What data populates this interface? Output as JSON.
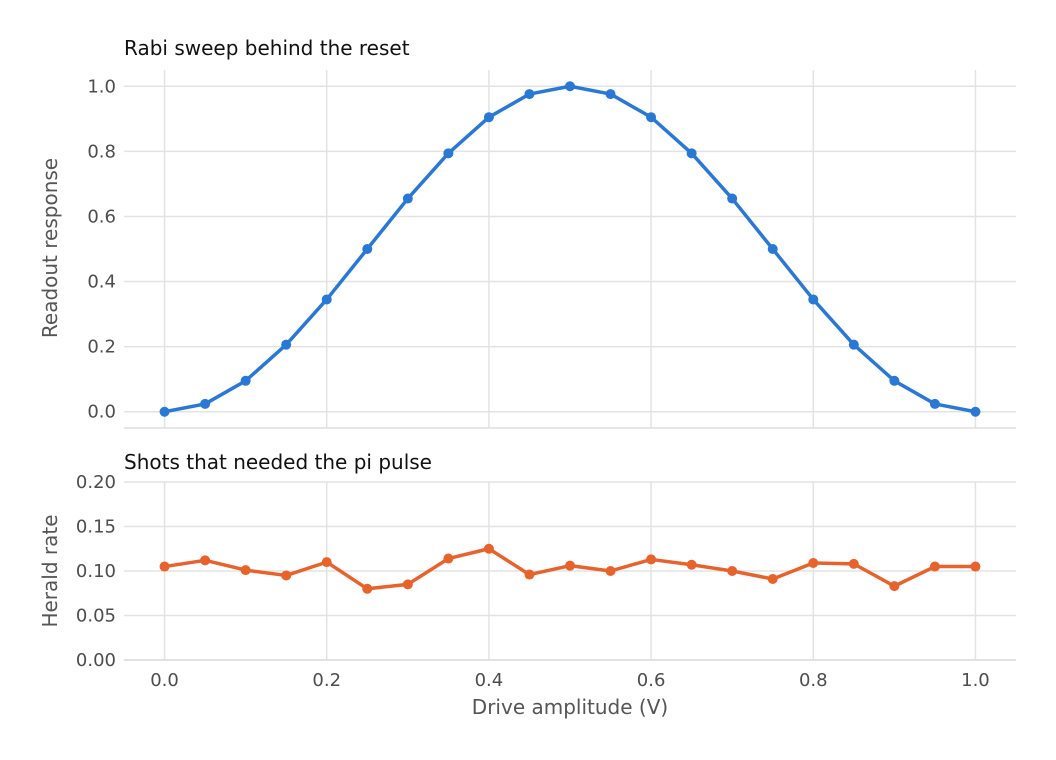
{
  "chart_data": [
    {
      "type": "line",
      "title": "Rabi sweep behind the reset",
      "xlabel": "",
      "ylabel": "Readout response",
      "xlim": [
        -0.05,
        1.05
      ],
      "ylim": [
        -0.05,
        1.05
      ],
      "xticks": [
        0.0,
        0.2,
        0.4,
        0.6,
        0.8,
        1.0
      ],
      "yticks": [
        0.0,
        0.2,
        0.4,
        0.6,
        0.8,
        1.0
      ],
      "ytick_labels": [
        "0.0",
        "0.2",
        "0.4",
        "0.6",
        "0.8",
        "1.0"
      ],
      "grid": true,
      "series": [
        {
          "color": "#2a78d6",
          "x": [
            0.0,
            0.05,
            0.1,
            0.15,
            0.2,
            0.25,
            0.3,
            0.35,
            0.4,
            0.45,
            0.5,
            0.55,
            0.6,
            0.65,
            0.7,
            0.75,
            0.8,
            0.85,
            0.9,
            0.95,
            1.0
          ],
          "y": [
            0.0,
            0.024,
            0.095,
            0.206,
            0.345,
            0.5,
            0.655,
            0.794,
            0.905,
            0.976,
            1.0,
            0.976,
            0.905,
            0.794,
            0.655,
            0.5,
            0.345,
            0.206,
            0.095,
            0.024,
            0.0
          ]
        }
      ]
    },
    {
      "type": "line",
      "title": "Shots that needed the pi pulse",
      "xlabel": "Drive amplitude (V)",
      "ylabel": "Herald rate",
      "xlim": [
        -0.05,
        1.05
      ],
      "ylim": [
        0.0,
        0.2
      ],
      "xticks": [
        0.0,
        0.2,
        0.4,
        0.6,
        0.8,
        1.0
      ],
      "xtick_labels": [
        "0.0",
        "0.2",
        "0.4",
        "0.6",
        "0.8",
        "1.0"
      ],
      "yticks": [
        0.0,
        0.05,
        0.1,
        0.15,
        0.2
      ],
      "ytick_labels": [
        "0.00",
        "0.05",
        "0.10",
        "0.15",
        "0.20"
      ],
      "grid": true,
      "series": [
        {
          "color": "#e8622c",
          "x": [
            0.0,
            0.05,
            0.1,
            0.15,
            0.2,
            0.25,
            0.3,
            0.35,
            0.4,
            0.45,
            0.5,
            0.55,
            0.6,
            0.65,
            0.7,
            0.75,
            0.8,
            0.85,
            0.9,
            0.95,
            1.0
          ],
          "y": [
            0.105,
            0.112,
            0.101,
            0.095,
            0.11,
            0.08,
            0.085,
            0.114,
            0.125,
            0.096,
            0.106,
            0.1,
            0.113,
            0.107,
            0.1,
            0.091,
            0.109,
            0.108,
            0.083,
            0.105,
            0.105
          ]
        }
      ]
    }
  ]
}
